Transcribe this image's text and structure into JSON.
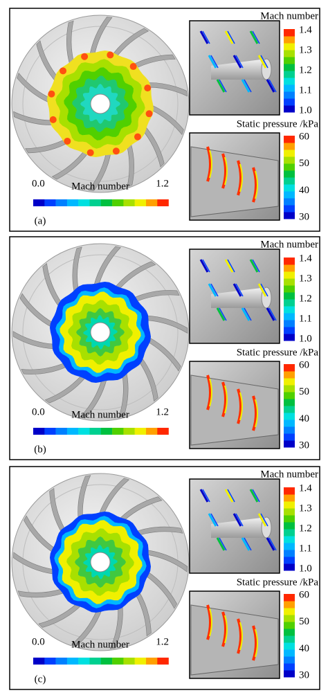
{
  "panels": [
    {
      "label": "(a)",
      "main_colorbar": {
        "title": "Mach number",
        "min_label": "0.0",
        "max_label": "1.2"
      },
      "top_colorbar": {
        "title": "Mach number",
        "ticks": [
          "1.4",
          "1.3",
          "1.2",
          "1.1",
          "1.0"
        ]
      },
      "bottom_colorbar": {
        "title": "Static pressure /kPa",
        "ticks": [
          "60",
          "50",
          "40",
          "30"
        ]
      }
    },
    {
      "label": "(b)",
      "main_colorbar": {
        "title": "Mach number",
        "min_label": "0.0",
        "max_label": "1.2"
      },
      "top_colorbar": {
        "title": "Mach number",
        "ticks": [
          "1.4",
          "1.3",
          "1.2",
          "1.1",
          "1.0"
        ]
      },
      "bottom_colorbar": {
        "title": "Static pressure /kPa",
        "ticks": [
          "60",
          "50",
          "40",
          "30"
        ]
      }
    },
    {
      "label": "(c)",
      "main_colorbar": {
        "title": "Mach number",
        "min_label": "0.0",
        "max_label": "1.2"
      },
      "top_colorbar": {
        "title": "Mach number",
        "ticks": [
          "1.4",
          "1.3",
          "1.2",
          "1.1",
          "1.0"
        ]
      },
      "bottom_colorbar": {
        "title": "Static pressure /kPa",
        "ticks": [
          "60",
          "50",
          "40",
          "30"
        ]
      }
    }
  ]
}
